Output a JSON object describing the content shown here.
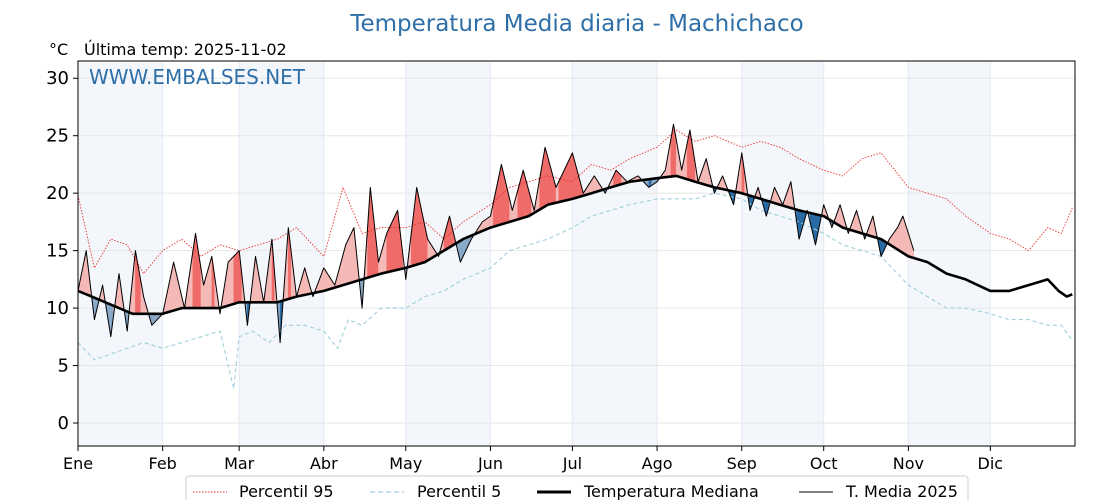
{
  "title": "Temperatura Media diaria - Machichaco",
  "unit_label": "°C",
  "last_temp_label": "Última temp: 2025-11-02",
  "watermark": "WWW.EMBALSES.NET",
  "colors": {
    "title": "#2f6fa8",
    "watermark": "#2f6fa8",
    "p95": "#e8322e",
    "p5": "#9fcfdc",
    "median": "#000000",
    "mean2025": "#000000",
    "above_light": "#f4b9b7",
    "above_strong": "#ef6b68",
    "below_light": "#88a9c8",
    "below_strong": "#2a6aa3",
    "month_band": "#f3f7fc"
  },
  "chart_data": {
    "type": "line",
    "title": "Temperatura Media diaria - Machichaco",
    "ylabel": "°C",
    "ylim": [
      -2,
      31.5
    ],
    "yticks": [
      0,
      5,
      10,
      15,
      20,
      25,
      30
    ],
    "grid": true,
    "month_labels": [
      "Ene",
      "Feb",
      "Mar",
      "Abr",
      "May",
      "Jun",
      "Jul",
      "Ago",
      "Sep",
      "Oct",
      "Nov",
      "Dic"
    ],
    "month_start_days": [
      0,
      31,
      59,
      90,
      120,
      151,
      181,
      212,
      243,
      273,
      304,
      334
    ],
    "days_in_year": 365,
    "series": [
      {
        "name": "Percentil 95",
        "style": "dotted-red",
        "x": [
          0,
          6,
          12,
          18,
          24,
          31,
          38,
          45,
          52,
          59,
          66,
          73,
          80,
          90,
          97,
          104,
          111,
          120,
          127,
          134,
          141,
          151,
          158,
          165,
          172,
          181,
          188,
          195,
          202,
          212,
          219,
          226,
          233,
          243,
          250,
          257,
          264,
          273,
          280,
          287,
          294,
          304,
          311,
          318,
          325,
          334,
          341,
          348,
          355,
          360,
          364
        ],
        "y": [
          19.8,
          13.5,
          16.0,
          15.5,
          13.0,
          15.0,
          16.0,
          14.5,
          15.5,
          15.0,
          15.5,
          16.0,
          17.0,
          14.5,
          20.5,
          16.5,
          17.0,
          17.0,
          17.5,
          16.0,
          17.5,
          19.0,
          20.5,
          21.0,
          21.5,
          21.0,
          22.5,
          22.0,
          23.0,
          24.0,
          25.5,
          24.5,
          25.0,
          24.0,
          24.5,
          24.0,
          23.0,
          22.0,
          21.5,
          23.0,
          23.5,
          20.5,
          20.0,
          19.5,
          18.0,
          16.5,
          16.0,
          15.0,
          17.0,
          16.5,
          18.7
        ]
      },
      {
        "name": "Percentil 5",
        "style": "dashed-lightblue",
        "x": [
          0,
          6,
          12,
          18,
          24,
          31,
          38,
          45,
          52,
          57,
          59,
          64,
          70,
          76,
          83,
          90,
          95,
          99,
          104,
          111,
          120,
          127,
          134,
          141,
          151,
          158,
          165,
          172,
          181,
          188,
          195,
          202,
          212,
          219,
          226,
          233,
          243,
          250,
          257,
          264,
          273,
          280,
          287,
          294,
          304,
          311,
          318,
          325,
          334,
          341,
          348,
          355,
          360,
          364
        ],
        "y": [
          7.0,
          5.5,
          6.0,
          6.5,
          7.0,
          6.5,
          7.0,
          7.5,
          8.0,
          3.0,
          7.5,
          8.0,
          7.0,
          8.5,
          8.5,
          8.0,
          6.5,
          9.0,
          8.5,
          10.0,
          10.0,
          11.0,
          11.5,
          12.5,
          13.5,
          15.0,
          15.5,
          16.0,
          17.0,
          18.0,
          18.5,
          19.0,
          19.5,
          19.5,
          19.5,
          20.0,
          19.5,
          18.5,
          18.0,
          17.5,
          16.5,
          15.5,
          15.0,
          14.5,
          12.0,
          11.0,
          10.0,
          10.0,
          9.5,
          9.0,
          9.0,
          8.5,
          8.5,
          7.2
        ]
      },
      {
        "name": "Temperatura Mediana",
        "style": "thick-black",
        "x": [
          0,
          5,
          10,
          15,
          20,
          25,
          31,
          38,
          45,
          52,
          59,
          66,
          73,
          80,
          90,
          97,
          104,
          111,
          120,
          127,
          134,
          141,
          151,
          158,
          165,
          172,
          181,
          188,
          195,
          202,
          212,
          219,
          226,
          233,
          243,
          250,
          257,
          264,
          273,
          280,
          287,
          294,
          304,
          311,
          318,
          325,
          334,
          341,
          348,
          355,
          359,
          362,
          364
        ],
        "y": [
          11.5,
          11.0,
          10.5,
          10.0,
          9.5,
          9.5,
          9.5,
          10.0,
          10.0,
          10.0,
          10.5,
          10.5,
          10.5,
          11.0,
          11.5,
          12.0,
          12.5,
          13.0,
          13.5,
          14.0,
          15.0,
          16.0,
          17.0,
          17.5,
          18.0,
          19.0,
          19.5,
          20.0,
          20.5,
          21.0,
          21.3,
          21.5,
          21.0,
          20.5,
          20.0,
          19.5,
          19.0,
          18.5,
          18.0,
          17.0,
          16.5,
          16.0,
          14.5,
          14.0,
          13.0,
          12.5,
          11.5,
          11.5,
          12.0,
          12.5,
          11.5,
          11.0,
          11.2
        ]
      },
      {
        "name": "T. Media 2025",
        "style": "thin-black",
        "x": [
          0,
          3,
          6,
          9,
          12,
          15,
          18,
          21,
          24,
          27,
          31,
          35,
          39,
          43,
          46,
          49,
          52,
          55,
          59,
          62,
          65,
          68,
          71,
          74,
          77,
          80,
          83,
          86,
          90,
          94,
          98,
          101,
          104,
          107,
          110,
          113,
          117,
          120,
          124,
          128,
          132,
          136,
          140,
          144,
          148,
          151,
          155,
          159,
          163,
          167,
          171,
          175,
          178,
          181,
          185,
          189,
          193,
          197,
          201,
          205,
          209,
          212,
          215,
          218,
          221,
          224,
          227,
          230,
          233,
          236,
          240,
          243,
          246,
          249,
          252,
          255,
          258,
          261,
          264,
          267,
          270,
          273,
          276,
          279,
          282,
          285,
          288,
          291,
          294,
          297,
          300,
          302,
          304,
          306
        ],
        "y": [
          11.5,
          15.0,
          9.0,
          12.0,
          7.5,
          13.0,
          8.0,
          15.0,
          11.0,
          8.5,
          9.5,
          14.0,
          10.0,
          16.5,
          12.0,
          14.5,
          9.5,
          14.0,
          15.0,
          8.5,
          14.5,
          10.5,
          16.0,
          7.0,
          17.0,
          11.0,
          13.5,
          11.0,
          13.5,
          12.0,
          15.5,
          17.0,
          10.0,
          20.5,
          14.0,
          16.5,
          18.5,
          12.5,
          20.5,
          16.0,
          14.5,
          18.0,
          14.0,
          16.0,
          17.5,
          18.0,
          22.5,
          18.5,
          22.0,
          18.5,
          24.0,
          20.5,
          22.0,
          23.5,
          20.0,
          21.5,
          20.0,
          22.0,
          21.0,
          21.5,
          20.5,
          21.0,
          22.0,
          26.0,
          22.0,
          25.5,
          21.0,
          23.0,
          20.0,
          21.5,
          19.0,
          23.5,
          18.5,
          20.5,
          18.0,
          20.5,
          19.0,
          21.0,
          16.0,
          18.5,
          15.5,
          19.0,
          17.0,
          19.0,
          16.5,
          18.5,
          16.0,
          18.0,
          14.5,
          16.0,
          17.0,
          18.0,
          16.5,
          15.0
        ]
      }
    ],
    "legend": {
      "placement": "bottom-center",
      "entries": [
        "Percentil 95",
        "Percentil 5",
        "Temperatura Mediana",
        "T. Media 2025"
      ]
    }
  }
}
